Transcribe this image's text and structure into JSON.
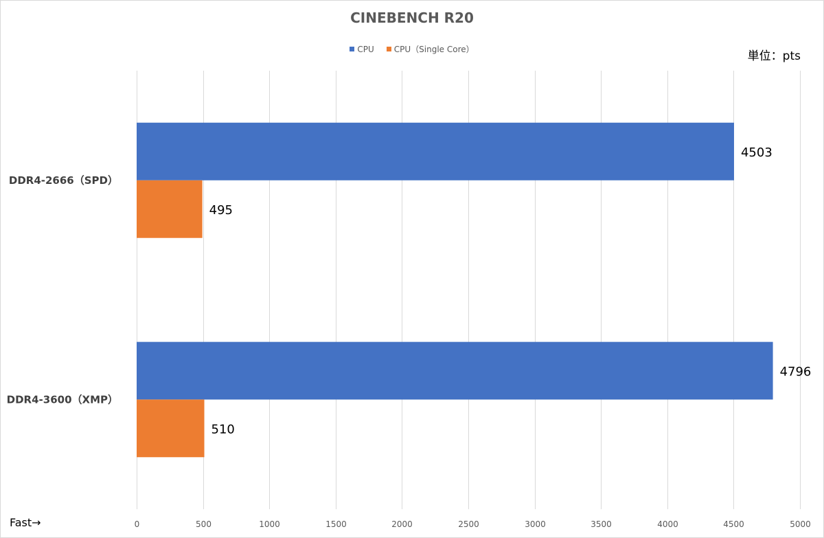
{
  "chart_data": {
    "type": "bar",
    "orientation": "horizontal",
    "title": "CINEBENCH R20",
    "unit_label": "単位：pts",
    "note_label": "Fast→",
    "categories": [
      "DDR4-2666（SPD）",
      "DDR4-3600（XMP）"
    ],
    "series": [
      {
        "name": "CPU",
        "color": "#4472C4",
        "values": [
          4503,
          4796
        ]
      },
      {
        "name": "CPU（Single Core）",
        "color": "#ED7D31",
        "values": [
          495,
          510
        ]
      }
    ],
    "xlim": [
      0,
      5000
    ],
    "x_ticks": [
      0,
      500,
      1000,
      1500,
      2000,
      2500,
      3000,
      3500,
      4000,
      4500,
      5000
    ],
    "grid": true,
    "legend_position": "top"
  }
}
